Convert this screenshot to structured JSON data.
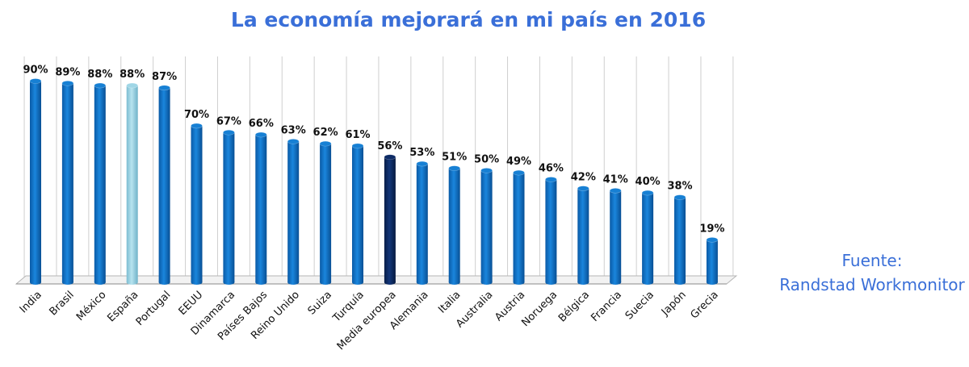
{
  "chart_data": {
    "type": "bar",
    "title": "La economía mejorará en mi país en 2016",
    "categories": [
      "India",
      "Brasil",
      "México",
      "España",
      "Portugal",
      "EEUU",
      "Dinamarca",
      "Países Bajos",
      "Reino Unido",
      "Suiza",
      "Turquía",
      "Media europea",
      "Alemania",
      "Italia",
      "Australia",
      "Austria",
      "Noruega",
      "Bélgica",
      "Francia",
      "Suecia",
      "Japón",
      "Grecia"
    ],
    "values": [
      90,
      89,
      88,
      88,
      87,
      70,
      67,
      66,
      63,
      62,
      61,
      56,
      53,
      51,
      50,
      49,
      46,
      42,
      41,
      40,
      38,
      19
    ],
    "value_labels": [
      "90%",
      "89%",
      "88%",
      "88%",
      "87%",
      "70%",
      "67%",
      "66%",
      "63%",
      "62%",
      "61%",
      "56%",
      "53%",
      "51%",
      "50%",
      "49%",
      "46%",
      "42%",
      "41%",
      "40%",
      "38%",
      "19%"
    ],
    "ylim": [
      0,
      100
    ],
    "grid": "vertical",
    "colors": {
      "default": "#0b6ec4",
      "highlight_spain": "#8fcde0",
      "highlight_average": "#0c2a63",
      "title": "#3a6fd8"
    },
    "highlight": {
      "España": "highlight_spain",
      "Media europea": "highlight_average"
    }
  },
  "source": {
    "line1": "Fuente:",
    "line2": "Randstad Workmonitor"
  }
}
